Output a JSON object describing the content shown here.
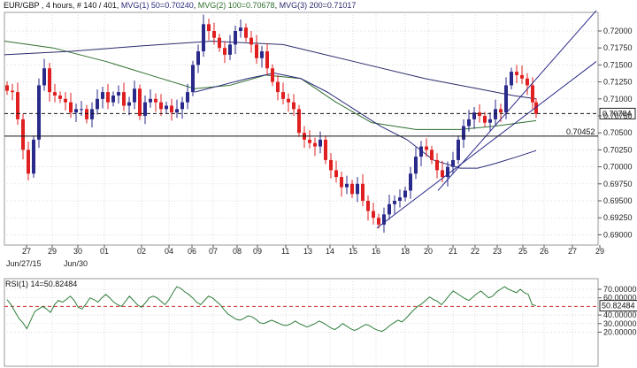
{
  "header": {
    "symbol": "EUR/GBP",
    "info": " , 4 hours, # 140 / 401, ",
    "mvg1": "MVG(1) 50=0.70240",
    "mvg2": "MVG(2) 100=0.70678",
    "mvg3": "MVG(3) 200=0.71017",
    "sep": ", "
  },
  "colors": {
    "up": "#2a2a8a",
    "down": "#e02020",
    "mvg1": "#2a2a7a",
    "mvg2": "#2e6e2e",
    "mvg3": "#2a2a6a",
    "rsi": "#2e7d3a",
    "grid": "#cfcfcf",
    "ref": "#cc3333",
    "price_line": "#111111"
  },
  "price_axis": {
    "ticks": [
      "0.72000",
      "0.71750",
      "0.71500",
      "0.71250",
      "0.71000",
      "0.70750",
      "0.70500",
      "0.70250",
      "0.70000",
      "0.69750",
      "0.69500",
      "0.69250",
      "0.69000"
    ],
    "current_label": "0.70784",
    "current_value": 0.70784,
    "support_label": "0.70452",
    "support_value": 0.70452
  },
  "x_axis": {
    "days": [
      "27",
      "29",
      "30",
      "01",
      "02",
      "04",
      "06",
      "07",
      "08",
      "09",
      "11",
      "13",
      "14",
      "15",
      "16",
      "18",
      "20",
      "21",
      "22",
      "23",
      "25",
      "26",
      "27",
      "28",
      "29"
    ],
    "months": [
      "Jun/27/15",
      "Jun/30"
    ]
  },
  "rsi": {
    "label": "RSI(1) 14=50.82484",
    "ticks": [
      "70.00000",
      "60.00000",
      "40.00000",
      "30.00000",
      "20.00000"
    ],
    "current_label": "50.82484",
    "current_value": 50.82484,
    "values": [
      58,
      52,
      44,
      36,
      31,
      24,
      34,
      44,
      47,
      50,
      47,
      43,
      52,
      57,
      55,
      58,
      62,
      57,
      49,
      47,
      53,
      60,
      58,
      55,
      60,
      64,
      60,
      55,
      52,
      50,
      56,
      62,
      57,
      52,
      49,
      54,
      60,
      62,
      60,
      56,
      52,
      58,
      66,
      73,
      71,
      67,
      64,
      60,
      55,
      52,
      57,
      62,
      60,
      56,
      52,
      46,
      41,
      38,
      35,
      34,
      36,
      39,
      38,
      35,
      31,
      30,
      32,
      34,
      32,
      30,
      28,
      28,
      30,
      33,
      30,
      28,
      26,
      28,
      30,
      33,
      31,
      28,
      25,
      23,
      26,
      30,
      27,
      24,
      22,
      24,
      27,
      29,
      27,
      24,
      22,
      21,
      24,
      28,
      31,
      34,
      32,
      36,
      41,
      46,
      50,
      53,
      57,
      61,
      58,
      56,
      52,
      57,
      63,
      68,
      65,
      62,
      59,
      57,
      61,
      65,
      68,
      64,
      60,
      62,
      67,
      70,
      73,
      70,
      68,
      66,
      70,
      66,
      64,
      52,
      51
    ]
  }
}
